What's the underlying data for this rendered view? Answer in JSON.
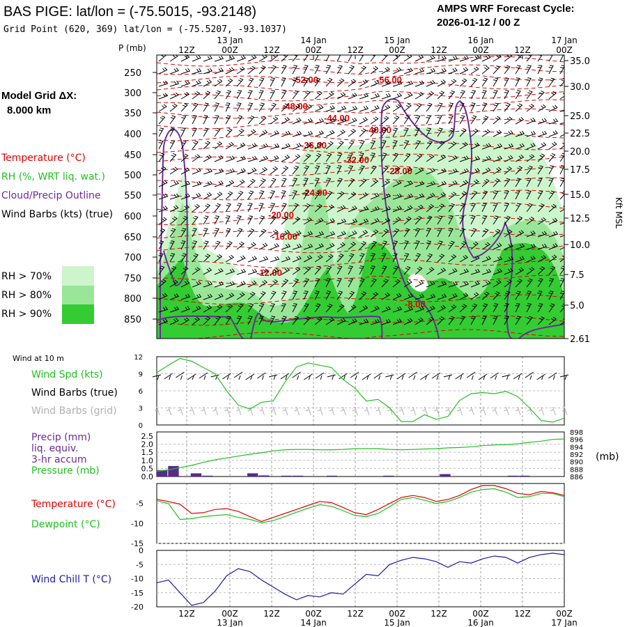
{
  "header": {
    "station": "BAS PIGE:  lat/lon = (-75.5015, -93.2148)",
    "grid_point": "Grid Point (620, 369) lat/lon = (-75.5207, -93.1037)",
    "cycle_label": "AMPS WRF Forecast Cycle:",
    "cycle_value": "2026-01-12 / 00  Z"
  },
  "model": {
    "grid_label": "Model Grid ΔX:",
    "grid_value": "8.000 km"
  },
  "time_axis": {
    "hours": [
      "12Z",
      "00Z",
      "12Z",
      "00Z",
      "12Z",
      "00Z",
      "12Z",
      "00Z",
      "12Z",
      "00Z"
    ],
    "dates": [
      "13 Jan",
      "14 Jan",
      "15 Jan",
      "16 Jan",
      "17 Jan"
    ]
  },
  "colors": {
    "temperature": "#e00000",
    "rh": "#20c020",
    "cloud": "#6a2a9a",
    "wind": "#000000",
    "grid_wind": "#b0b0b0",
    "windchill": "#1a1aa8",
    "rh70": "#ccf5cc",
    "rh80": "#99e699",
    "rh90": "#33cc33"
  },
  "chart_data": [
    {
      "type": "heatmap",
      "title": "",
      "ylabel_left": "P (mb)",
      "ylabel_right": "Kft MSL",
      "pressure_ticks": [
        "250",
        "300",
        "350",
        "400",
        "450",
        "500",
        "550",
        "600",
        "650",
        "700",
        "750",
        "800",
        "850"
      ],
      "height_ticks": [
        "35.0",
        "30.0",
        "25.0",
        "22.5",
        "20.0",
        "17.5",
        "15.0",
        "12.5",
        "10.0",
        "7.5",
        "5.0",
        "2.61"
      ],
      "legend": {
        "temperature": "Temperature (°C)",
        "rh": "RH (%, WRT liq. wat.)",
        "cloud": "Cloud/Precip Outline",
        "wind": "Wind Barbs (kts) (true)",
        "rh70": "RH > 70%",
        "rh80": "RH > 80%",
        "rh90": "RH > 90%"
      },
      "temperature_labels": [
        "-52.00",
        "-56.00",
        "-48.00",
        "-44.00",
        "-40.00",
        "-36.00",
        "-32.00",
        "-28.00",
        "-24.00",
        "-20.00",
        "-16.00",
        "-12.00",
        "-8.00"
      ]
    },
    {
      "type": "line",
      "header": "Wind at 10 m",
      "labels": {
        "spd": "Wind Spd (kts)",
        "barbs": "Wind Barbs (true)",
        "grid": "Wind Barbs (grid)"
      },
      "y_ticks": [
        "12",
        "9",
        "6",
        "3",
        "0"
      ],
      "ylim": [
        0,
        12
      ],
      "series": [
        {
          "values": [
            9.2,
            10.5,
            11.7,
            11.2,
            10.1,
            9.0,
            6.0,
            3.5,
            2.8,
            4.0,
            4.2,
            7.5,
            10.2,
            10.9,
            10.5,
            10.1,
            8.0,
            6.5,
            4.2,
            4.5,
            3.0,
            0.6,
            0.6,
            1.8,
            1.0,
            1.5,
            4.3,
            5.5,
            5.7,
            5.5,
            5.9,
            5.0,
            3.0,
            0.8,
            0.5,
            1.2
          ]
        }
      ]
    },
    {
      "type": "bar",
      "labels": {
        "precip": "Precip (mm)",
        "liq": "liq. equiv.",
        "accum": "3-hr accum",
        "pressure": "Pressure (mb)"
      },
      "unit": "(mb)",
      "y_ticks_left": [
        "2.5",
        "2.0",
        "1.5",
        "1.0",
        "0.5",
        "0.0"
      ],
      "y_ticks_right": [
        "898",
        "896",
        "894",
        "892",
        "890",
        "888",
        "886"
      ],
      "ylim_left": [
        0,
        2.5
      ],
      "ylim_right": [
        886,
        898
      ],
      "precip": [
        0.4,
        0.65,
        0,
        0.2,
        0.05,
        0,
        0,
        0,
        0.2,
        0.07,
        0,
        0.05,
        0.05,
        0,
        0,
        0.05,
        0,
        0,
        0,
        0,
        0.05,
        0,
        0,
        0,
        0,
        0.15,
        0,
        0,
        0,
        0,
        0,
        0.05,
        0.05,
        0,
        0,
        0
      ],
      "series": [
        {
          "values": [
            887.4,
            887.8,
            888.4,
            889.0,
            889.8,
            890.5,
            891.0,
            891.5,
            892.0,
            892.4,
            892.9,
            893.2,
            893.3,
            893.3,
            893.2,
            893.2,
            893.3,
            893.5,
            893.5,
            893.5,
            893.3,
            893.2,
            893.3,
            893.4,
            893.5,
            893.7,
            893.8,
            894.0,
            894.3,
            894.5,
            894.6,
            894.8,
            895.2,
            895.5,
            896.0,
            896.1
          ]
        }
      ]
    },
    {
      "type": "line",
      "labels": {
        "temperature": "Temperature (°C)",
        "dewpoint": "Dewpoint (°C)"
      },
      "y_ticks": [
        "-5",
        "-10",
        "-15"
      ],
      "ylim": [
        -15,
        0
      ],
      "series": [
        {
          "values": [
            -4.0,
            -4.5,
            -5.2,
            -7.5,
            -7.3,
            -6.5,
            -6.3,
            -7.0,
            -8.3,
            -9.5,
            -8.5,
            -7.5,
            -6.5,
            -5.5,
            -4.5,
            -4.8,
            -6.0,
            -7.3,
            -7.8,
            -6.5,
            -5.0,
            -3.5,
            -3.0,
            -3.5,
            -4.5,
            -4.0,
            -3.0,
            -1.5,
            -0.5,
            -0.5,
            -1.3,
            -2.5,
            -2.8,
            -2.0,
            -2.3,
            -3.0
          ]
        },
        {
          "values": [
            -4.3,
            -5.0,
            -9.0,
            -8.8,
            -8.3,
            -8.0,
            -7.8,
            -8.5,
            -9.0,
            -9.8,
            -9.3,
            -8.3,
            -7.2,
            -6.2,
            -5.3,
            -5.7,
            -6.8,
            -8.0,
            -8.3,
            -7.5,
            -5.8,
            -4.0,
            -3.5,
            -4.2,
            -5.0,
            -4.5,
            -3.5,
            -2.2,
            -1.5,
            -1.3,
            -2.2,
            -3.5,
            -3.3,
            -2.5,
            -2.5,
            -3.3
          ]
        }
      ]
    },
    {
      "type": "line",
      "labels": {
        "windchill": "Wind Chill T (°C)"
      },
      "y_ticks": [
        "0",
        "-5",
        "-10",
        "-15",
        "-20"
      ],
      "ylim": [
        -20,
        0
      ],
      "series": [
        {
          "values": [
            -11.5,
            -10.5,
            -15.0,
            -19.5,
            -18.5,
            -14.5,
            -9.0,
            -6.5,
            -7.5,
            -10.5,
            -13.0,
            -15.5,
            -17.5,
            -16.0,
            -16.5,
            -15.0,
            -15.5,
            -12.0,
            -8.5,
            -9.0,
            -5.0,
            -3.5,
            -2.5,
            -3.0,
            -4.0,
            -6.0,
            -4.0,
            -4.5,
            -3.0,
            -2.0,
            -2.5,
            -4.5,
            -2.5,
            -1.5,
            -1.0,
            -1.5
          ]
        }
      ]
    }
  ]
}
